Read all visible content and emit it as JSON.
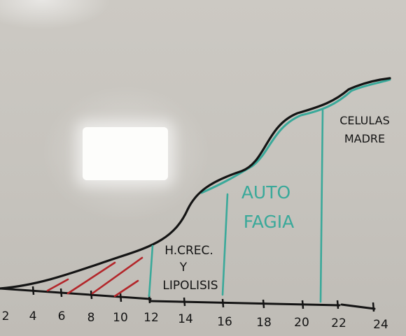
{
  "colors": {
    "board": "#c9c6c0",
    "ink_black": "#141414",
    "ink_teal": "#3aa99a",
    "ink_red": "#b3262a"
  },
  "axis": {
    "ticks": [
      "2",
      "4",
      "6",
      "8",
      "10",
      "12",
      "14",
      "16",
      "18",
      "20",
      "22",
      "24"
    ]
  },
  "zones": {
    "growth": {
      "line1": "H.CREC.",
      "line2": "Y",
      "line3": "LIPOLISIS"
    },
    "autophagy": {
      "line1": "AUTO",
      "line2": "FAGIA"
    },
    "stem_cells": {
      "line1": "CELULAS",
      "line2": "MADRE"
    }
  }
}
